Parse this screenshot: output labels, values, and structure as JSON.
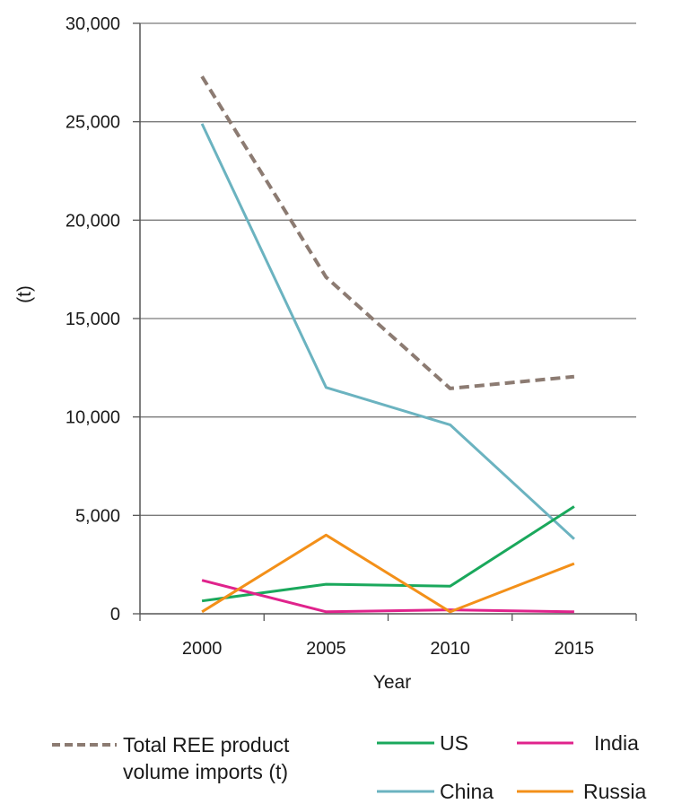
{
  "chart_data": {
    "type": "line",
    "title": "",
    "xlabel": "Year",
    "ylabel": "(t)",
    "x": [
      2000,
      2005,
      2010,
      2015
    ],
    "ylim": [
      0,
      30000
    ],
    "yticks": [
      0,
      5000,
      10000,
      15000,
      20000,
      25000,
      30000
    ],
    "ytick_labels": [
      "0",
      "5,000",
      "10,000",
      "15,000",
      "20,000",
      "25,000",
      "30,000"
    ],
    "xtick_labels": [
      "2000",
      "2005",
      "2010",
      "2015"
    ],
    "grid": "horizontal",
    "legend_position": "bottom",
    "series": [
      {
        "name": "Total REE product volume imports (t)",
        "legend_lines": [
          "Total REE product",
          "volume imports (t)"
        ],
        "values": [
          27300,
          17100,
          11450,
          12050
        ],
        "color": "#8c7b72",
        "style": "dashed"
      },
      {
        "name": "China",
        "values": [
          24900,
          11500,
          9600,
          3800
        ],
        "color": "#6bb3c0",
        "style": "solid"
      },
      {
        "name": "US",
        "values": [
          650,
          1500,
          1400,
          5450
        ],
        "color": "#1aa85c",
        "style": "solid"
      },
      {
        "name": "India",
        "values": [
          1700,
          100,
          200,
          100
        ],
        "color": "#e0238c",
        "style": "solid"
      },
      {
        "name": "Russia",
        "values": [
          100,
          4000,
          100,
          2550
        ],
        "color": "#f39019",
        "style": "solid"
      }
    ]
  }
}
